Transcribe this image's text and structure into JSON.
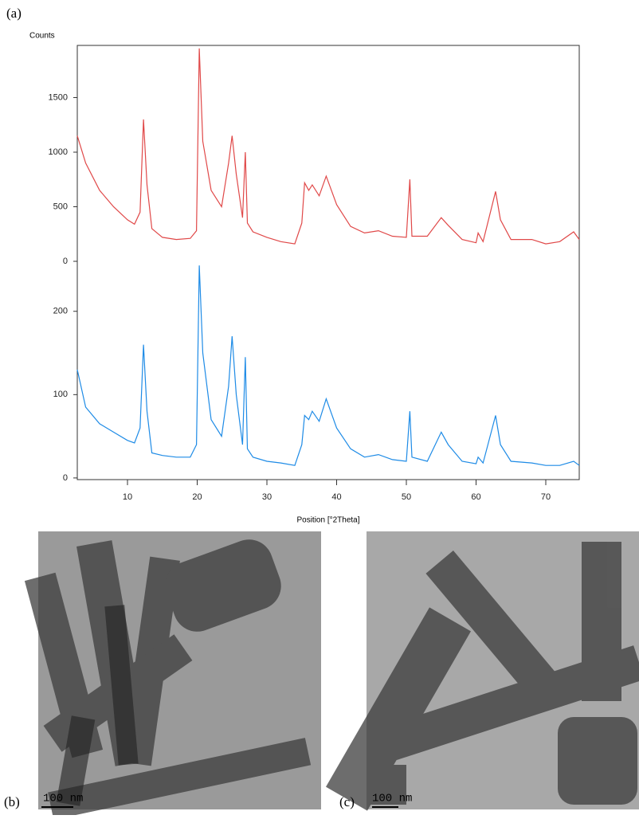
{
  "chart_data": [
    {
      "type": "line",
      "ylabel": "Counts",
      "x": [
        2.8,
        4,
        6,
        8,
        10,
        11,
        11.8,
        12.3,
        12.8,
        13.5,
        15,
        17,
        19,
        19.9,
        20.3,
        20.8,
        22,
        23.5,
        24.5,
        25,
        25.6,
        26.5,
        26.9,
        27.2,
        28,
        30,
        32,
        34,
        35,
        35.4,
        36,
        36.5,
        37.5,
        38.5,
        40,
        42,
        44,
        46,
        48,
        50,
        50.5,
        50.8,
        53,
        55,
        56,
        58,
        60,
        60.3,
        61,
        62.8,
        63.5,
        65,
        68,
        70,
        72,
        74,
        74.8
      ],
      "series": [
        {
          "color": "#e04848",
          "values": [
            1150,
            900,
            650,
            500,
            380,
            340,
            450,
            1300,
            700,
            300,
            220,
            200,
            210,
            280,
            1950,
            1100,
            650,
            500,
            900,
            1150,
            800,
            400,
            1000,
            350,
            270,
            220,
            180,
            160,
            350,
            720,
            650,
            700,
            600,
            780,
            520,
            320,
            260,
            280,
            230,
            220,
            750,
            230,
            230,
            400,
            330,
            200,
            170,
            260,
            180,
            640,
            380,
            200,
            200,
            160,
            180,
            270,
            200
          ]
        }
      ],
      "xlim": [
        2.8,
        74.8
      ],
      "ylim": [
        0,
        1978
      ],
      "yticks": [
        0,
        500,
        1000,
        1500
      ]
    },
    {
      "type": "line",
      "xlabel": "Position [°2Theta]",
      "x": [
        2.8,
        4,
        6,
        8,
        10,
        11,
        11.8,
        12.3,
        12.8,
        13.5,
        15,
        17,
        19,
        19.9,
        20.3,
        20.8,
        22,
        23.5,
        24.5,
        25,
        25.6,
        26.5,
        26.9,
        27.2,
        28,
        30,
        32,
        34,
        35,
        35.4,
        36,
        36.5,
        37.5,
        38.5,
        40,
        42,
        44,
        46,
        48,
        50,
        50.5,
        50.8,
        53,
        55,
        56,
        58,
        60,
        60.3,
        61,
        62.8,
        63.5,
        65,
        68,
        70,
        72,
        74,
        74.8
      ],
      "series": [
        {
          "color": "#1e8be6",
          "values": [
            130,
            85,
            65,
            55,
            45,
            42,
            60,
            160,
            80,
            30,
            27,
            25,
            25,
            40,
            255,
            150,
            70,
            50,
            110,
            170,
            100,
            40,
            145,
            35,
            25,
            20,
            18,
            15,
            40,
            75,
            70,
            80,
            68,
            95,
            60,
            35,
            25,
            28,
            22,
            20,
            80,
            25,
            20,
            55,
            40,
            20,
            17,
            25,
            18,
            75,
            40,
            20,
            18,
            15,
            15,
            20,
            15
          ]
        }
      ],
      "xlim": [
        2.8,
        74.8
      ],
      "ylim": [
        -2,
        260
      ],
      "yticks": [
        0,
        100,
        200
      ],
      "xticks": [
        10,
        20,
        30,
        40,
        50,
        60,
        70
      ]
    }
  ],
  "panel_labels": [
    "(a)",
    "(b)",
    "(c)"
  ],
  "scale_bars": [
    "100 nm",
    "100 nm"
  ]
}
